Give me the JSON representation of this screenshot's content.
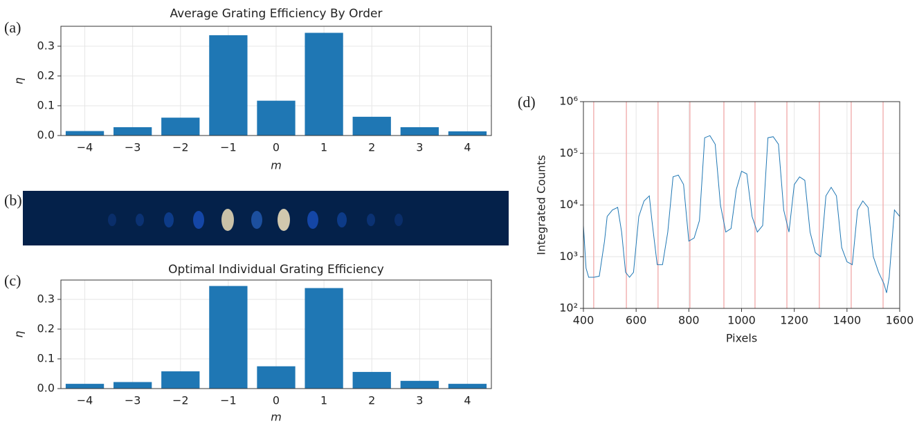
{
  "chart_data": [
    {
      "type": "bar",
      "panel_label": "(a)",
      "title": "Average Grating Efficiency By Order",
      "x_label": "m",
      "y_label": "η",
      "categories": [
        "−4",
        "−3",
        "−2",
        "−1",
        "0",
        "1",
        "2",
        "3",
        "4"
      ],
      "values": [
        0.015,
        0.028,
        0.06,
        0.337,
        0.117,
        0.345,
        0.063,
        0.028,
        0.014
      ],
      "color": "#1f77b4",
      "ylim": [
        0,
        0.367
      ],
      "yticks": [
        {
          "value": 0,
          "label": "0.0"
        },
        0.1,
        0.2,
        0.3
      ],
      "grid": true
    },
    {
      "type": "bar",
      "panel_label": "(c)",
      "title": "Optimal Individual Grating Efficiency",
      "x_label": "m",
      "y_label": "η",
      "categories": [
        "−4",
        "−3",
        "−2",
        "−1",
        "0",
        "1",
        "2",
        "3",
        "4"
      ],
      "values": [
        0.016,
        0.022,
        0.058,
        0.345,
        0.075,
        0.338,
        0.056,
        0.026,
        0.016
      ],
      "color": "#1f77b4",
      "ylim": [
        0,
        0.365
      ],
      "yticks": [
        {
          "value": 0,
          "label": "0.0"
        },
        0.1,
        0.2,
        0.3
      ],
      "grid": true
    },
    {
      "type": "line",
      "panel_label": "(d)",
      "x_label": "Pixels",
      "y_label": "Integrated Counts",
      "log_y": true,
      "grid": true,
      "x": [
        400,
        410,
        420,
        440,
        460,
        480,
        490,
        510,
        530,
        545,
        560,
        575,
        590,
        610,
        630,
        650,
        660,
        680,
        700,
        720,
        740,
        760,
        780,
        800,
        820,
        840,
        860,
        880,
        900,
        920,
        940,
        960,
        980,
        1000,
        1020,
        1040,
        1060,
        1080,
        1100,
        1120,
        1140,
        1160,
        1180,
        1200,
        1220,
        1240,
        1260,
        1280,
        1300,
        1320,
        1340,
        1360,
        1380,
        1400,
        1420,
        1440,
        1460,
        1480,
        1500,
        1520,
        1540,
        1550,
        1560,
        1580,
        1600
      ],
      "series": [
        {
          "color": "#1f77b4",
          "values": [
            4000,
            600,
            400,
            400,
            420,
            2000,
            6000,
            8000,
            9000,
            3000,
            500,
            400,
            500,
            6000,
            12000,
            15000,
            5000,
            700,
            700,
            3000,
            35000,
            38000,
            25000,
            2000,
            2300,
            5000,
            200000,
            220000,
            150000,
            10000,
            3000,
            3500,
            20000,
            45000,
            40000,
            6000,
            3000,
            4000,
            200000,
            210000,
            150000,
            8000,
            3000,
            25000,
            35000,
            30000,
            3000,
            1200,
            1000,
            15000,
            22000,
            15000,
            1500,
            800,
            700,
            8000,
            12000,
            9000,
            1000,
            500,
            300,
            200,
            400,
            8000,
            6000
          ]
        }
      ],
      "vlines": [
        439,
        563,
        683,
        804,
        933,
        1051,
        1172,
        1295,
        1416,
        1537
      ],
      "vline_color": "#f2b3b3",
      "xlim": [
        400,
        1600
      ],
      "xticks": [
        400,
        600,
        800,
        1000,
        1200,
        1400,
        1600
      ],
      "ylim": [
        100,
        1000000
      ],
      "yticks": [
        {
          "value": 100,
          "label": "10²"
        },
        {
          "value": 1000,
          "label": "10³"
        },
        {
          "value": 10000,
          "label": "10⁴"
        },
        {
          "value": 100000,
          "label": "10⁵"
        },
        {
          "value": 1000000,
          "label": "10⁶"
        }
      ]
    }
  ],
  "panel_b": {
    "label": "(b)"
  }
}
